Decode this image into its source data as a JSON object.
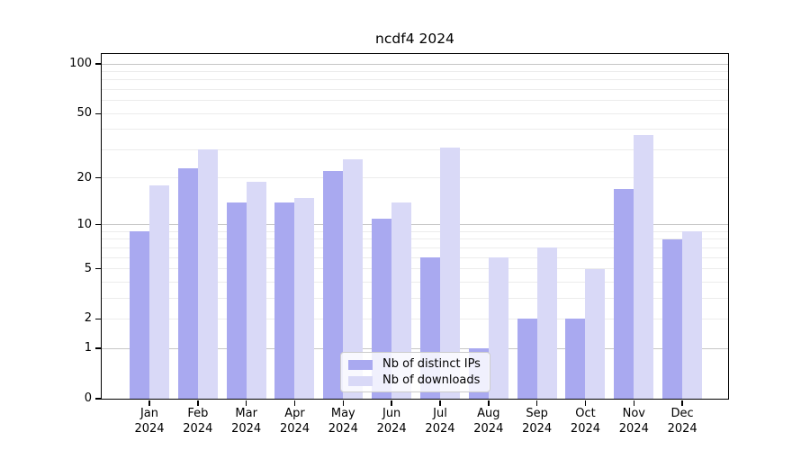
{
  "chart_data": {
    "type": "bar",
    "title": "ncdf4 2024",
    "x": [
      "Jan",
      "Feb",
      "Mar",
      "Apr",
      "May",
      "Jun",
      "Jul",
      "Aug",
      "Sep",
      "Oct",
      "Nov",
      "Dec"
    ],
    "x_year": "2024",
    "series": [
      {
        "name": "Nb of distinct IPs",
        "color": "#a9a9f0",
        "values": [
          9,
          23,
          14,
          14,
          22,
          11,
          6,
          1,
          2,
          2,
          17,
          8
        ]
      },
      {
        "name": "Nb of downloads",
        "color": "#d9d9f7",
        "values": [
          18,
          30,
          19,
          15,
          26,
          14,
          31,
          6,
          7,
          5,
          37,
          9
        ]
      }
    ],
    "scale": "log1p",
    "ylim": [
      0,
      115
    ],
    "y_ticks": [
      100,
      50,
      20,
      10,
      5,
      2,
      1,
      0
    ],
    "gridlines_major": [
      1,
      10,
      100
    ],
    "gridlines_minor": [
      2,
      3,
      4,
      5,
      6,
      7,
      8,
      9,
      20,
      30,
      40,
      50,
      60,
      70,
      80,
      90
    ],
    "grid": true,
    "legend_position": "lower center",
    "xlabel": "",
    "ylabel": ""
  }
}
